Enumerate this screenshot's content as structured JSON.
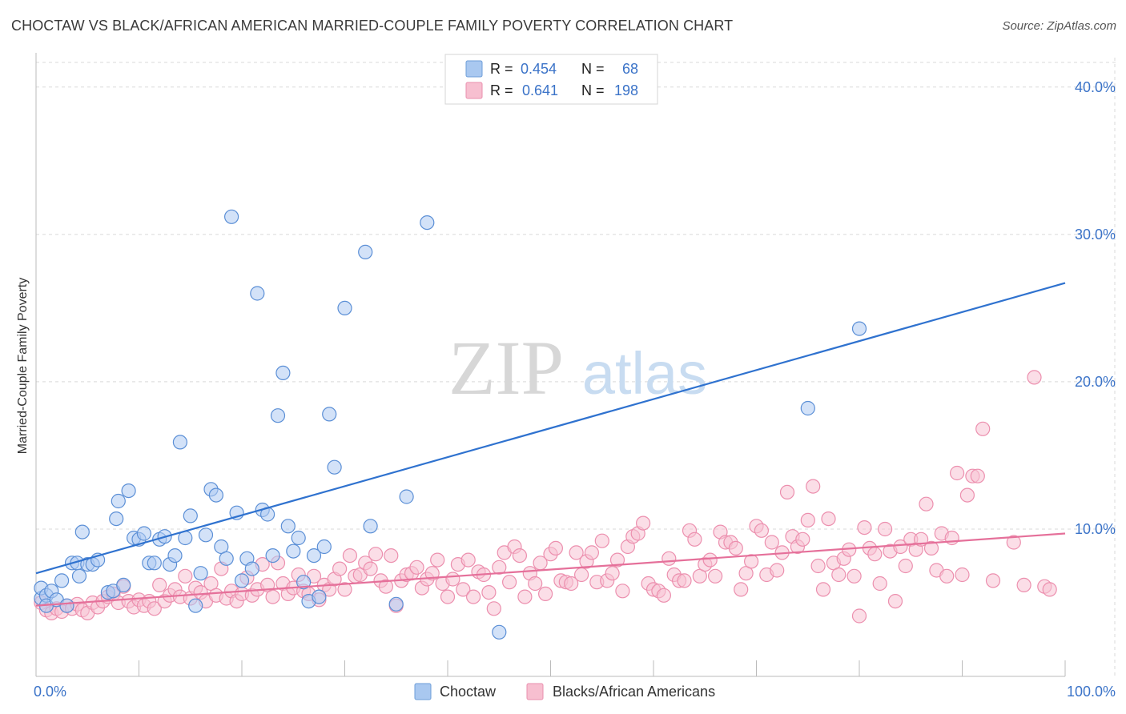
{
  "header": {
    "title": "CHOCTAW VS BLACK/AFRICAN AMERICAN MARRIED-COUPLE FAMILY POVERTY CORRELATION CHART",
    "source": "Source: ZipAtlas.com"
  },
  "watermark": {
    "zip": "ZIP",
    "atlas": "atlas"
  },
  "legend_box": {
    "rows": [
      {
        "r_label": "R =",
        "r_value": "0.454",
        "n_label": "N =",
        "n_value": "68",
        "color": "#a9c8f0",
        "stroke": "#6d9ed9"
      },
      {
        "r_label": "R =",
        "r_value": "0.641",
        "n_label": "N =",
        "n_value": "198",
        "color": "#f7bfd0",
        "stroke": "#ea8fae"
      }
    ]
  },
  "colors": {
    "blue_fill": "#aecbf2",
    "blue_stroke": "#5b8fd6",
    "blue_line": "#2f72cf",
    "pink_fill": "#f8c3d3",
    "pink_stroke": "#ec8fae",
    "pink_line": "#e5709a",
    "value_text": "#3b73c8",
    "grid": "#d9d9d9"
  },
  "chart_data": {
    "type": "scatter",
    "title": "CHOCTAW VS BLACK/AFRICAN AMERICAN MARRIED-COUPLE FAMILY POVERTY CORRELATION CHART",
    "xlabel": "",
    "ylabel": "Married-Couple Family Poverty",
    "xlim": [
      0,
      100
    ],
    "ylim": [
      0,
      42
    ],
    "x_tick_labels": [
      "0.0%",
      "100.0%"
    ],
    "y_ticks": [
      10,
      20,
      30,
      40
    ],
    "y_tick_labels": [
      "10.0%",
      "20.0%",
      "30.0%",
      "40.0%"
    ],
    "grid": true,
    "legend_position": "bottom",
    "series": [
      {
        "name": "Choctaw",
        "trend": {
          "x": [
            0,
            100
          ],
          "y": [
            7.0,
            26.7
          ]
        },
        "points": [
          [
            0.5,
            5.3
          ],
          [
            0.5,
            6.0
          ],
          [
            1,
            5.5
          ],
          [
            1,
            4.8
          ],
          [
            1.5,
            5.8
          ],
          [
            2,
            5.2
          ],
          [
            2.5,
            6.5
          ],
          [
            3,
            4.8
          ],
          [
            3.5,
            7.7
          ],
          [
            4,
            7.7
          ],
          [
            4.2,
            6.8
          ],
          [
            4.5,
            9.8
          ],
          [
            5,
            7.6
          ],
          [
            5.5,
            7.6
          ],
          [
            6,
            7.9
          ],
          [
            7,
            5.7
          ],
          [
            7.5,
            5.8
          ],
          [
            7.8,
            10.7
          ],
          [
            8,
            11.9
          ],
          [
            8.5,
            6.2
          ],
          [
            9,
            12.6
          ],
          [
            9.5,
            9.4
          ],
          [
            10,
            9.3
          ],
          [
            10.5,
            9.7
          ],
          [
            11,
            7.7
          ],
          [
            11.5,
            7.7
          ],
          [
            12,
            9.3
          ],
          [
            12.5,
            9.5
          ],
          [
            13,
            7.6
          ],
          [
            13.5,
            8.2
          ],
          [
            14,
            15.9
          ],
          [
            14.5,
            9.4
          ],
          [
            15,
            10.9
          ],
          [
            15.5,
            4.8
          ],
          [
            16,
            7.0
          ],
          [
            16.5,
            9.6
          ],
          [
            17,
            12.7
          ],
          [
            17.5,
            12.3
          ],
          [
            18,
            8.8
          ],
          [
            18.5,
            8.0
          ],
          [
            19,
            31.2
          ],
          [
            19.5,
            11.1
          ],
          [
            20,
            6.5
          ],
          [
            20.5,
            8.0
          ],
          [
            21,
            7.3
          ],
          [
            21.5,
            26.0
          ],
          [
            22,
            11.3
          ],
          [
            22.5,
            11.0
          ],
          [
            23,
            8.2
          ],
          [
            23.5,
            17.7
          ],
          [
            24,
            20.6
          ],
          [
            24.5,
            10.2
          ],
          [
            25,
            8.5
          ],
          [
            25.5,
            9.4
          ],
          [
            26,
            6.4
          ],
          [
            26.5,
            5.1
          ],
          [
            27,
            8.2
          ],
          [
            27.5,
            5.4
          ],
          [
            28,
            8.8
          ],
          [
            28.5,
            17.8
          ],
          [
            29,
            14.2
          ],
          [
            30,
            25.0
          ],
          [
            32,
            28.8
          ],
          [
            32.5,
            10.2
          ],
          [
            35,
            4.9
          ],
          [
            36,
            12.2
          ],
          [
            38,
            30.8
          ],
          [
            45,
            3.0
          ],
          [
            75,
            18.2
          ],
          [
            80,
            23.6
          ]
        ]
      },
      {
        "name": "Blacks/African Americans",
        "trend": {
          "x": [
            0,
            100
          ],
          "y": [
            4.8,
            9.7
          ]
        },
        "points": [
          [
            0.5,
            5.0
          ],
          [
            1,
            4.5
          ],
          [
            1.5,
            4.3
          ],
          [
            2,
            4.6
          ],
          [
            2.5,
            4.4
          ],
          [
            3,
            4.8
          ],
          [
            3.5,
            4.6
          ],
          [
            4,
            4.9
          ],
          [
            4.5,
            4.5
          ],
          [
            5,
            4.3
          ],
          [
            5.5,
            5.0
          ],
          [
            6,
            4.7
          ],
          [
            6.5,
            5.1
          ],
          [
            7,
            5.4
          ],
          [
            7.5,
            5.6
          ],
          [
            8,
            5.0
          ],
          [
            8.5,
            6.1
          ],
          [
            9,
            5.1
          ],
          [
            9.5,
            4.7
          ],
          [
            10,
            5.2
          ],
          [
            10.5,
            4.8
          ],
          [
            11,
            5.1
          ],
          [
            11.5,
            4.6
          ],
          [
            12,
            6.2
          ],
          [
            12.5,
            5.1
          ],
          [
            13,
            5.5
          ],
          [
            13.5,
            5.9
          ],
          [
            14,
            5.4
          ],
          [
            14.5,
            6.8
          ],
          [
            15,
            5.3
          ],
          [
            15.5,
            6.0
          ],
          [
            16,
            5.7
          ],
          [
            16.5,
            5.1
          ],
          [
            17,
            6.3
          ],
          [
            17.5,
            5.5
          ],
          [
            18,
            7.3
          ],
          [
            18.5,
            5.3
          ],
          [
            19,
            5.8
          ],
          [
            19.5,
            5.1
          ],
          [
            20,
            5.6
          ],
          [
            20.5,
            6.7
          ],
          [
            21,
            5.5
          ],
          [
            21.5,
            5.9
          ],
          [
            22,
            7.6
          ],
          [
            22.5,
            6.2
          ],
          [
            23,
            5.4
          ],
          [
            23.5,
            7.7
          ],
          [
            24,
            6.3
          ],
          [
            24.5,
            5.6
          ],
          [
            25,
            6.0
          ],
          [
            25.5,
            6.9
          ],
          [
            26,
            5.8
          ],
          [
            26.5,
            5.6
          ],
          [
            27,
            6.8
          ],
          [
            27.5,
            5.2
          ],
          [
            28,
            6.2
          ],
          [
            28.5,
            5.9
          ],
          [
            29,
            6.6
          ],
          [
            29.5,
            7.3
          ],
          [
            30,
            5.9
          ],
          [
            30.5,
            8.2
          ],
          [
            31,
            6.8
          ],
          [
            31.5,
            6.9
          ],
          [
            32,
            7.7
          ],
          [
            32.5,
            7.3
          ],
          [
            33,
            8.3
          ],
          [
            33.5,
            6.5
          ],
          [
            34,
            6.1
          ],
          [
            34.5,
            8.2
          ],
          [
            35,
            4.8
          ],
          [
            35.5,
            6.5
          ],
          [
            36,
            6.9
          ],
          [
            36.5,
            7.0
          ],
          [
            37,
            7.4
          ],
          [
            37.5,
            6.0
          ],
          [
            38,
            6.6
          ],
          [
            38.5,
            7.0
          ],
          [
            39,
            7.9
          ],
          [
            39.5,
            6.3
          ],
          [
            40,
            5.4
          ],
          [
            40.5,
            6.6
          ],
          [
            41,
            7.6
          ],
          [
            41.5,
            5.9
          ],
          [
            42,
            7.9
          ],
          [
            42.5,
            5.4
          ],
          [
            43,
            7.1
          ],
          [
            43.5,
            6.9
          ],
          [
            44,
            5.7
          ],
          [
            44.5,
            4.6
          ],
          [
            45,
            7.4
          ],
          [
            45.5,
            8.4
          ],
          [
            46,
            6.4
          ],
          [
            46.5,
            8.8
          ],
          [
            47,
            8.2
          ],
          [
            47.5,
            5.4
          ],
          [
            48,
            7.0
          ],
          [
            48.5,
            6.3
          ],
          [
            49,
            7.7
          ],
          [
            49.5,
            5.6
          ],
          [
            50,
            8.3
          ],
          [
            50.5,
            8.7
          ],
          [
            51,
            6.5
          ],
          [
            51.5,
            6.4
          ],
          [
            52,
            6.3
          ],
          [
            52.5,
            8.4
          ],
          [
            53,
            6.9
          ],
          [
            53.5,
            7.8
          ],
          [
            54,
            8.4
          ],
          [
            54.5,
            6.4
          ],
          [
            55,
            9.2
          ],
          [
            55.5,
            6.5
          ],
          [
            56,
            7.0
          ],
          [
            56.5,
            7.9
          ],
          [
            57,
            5.8
          ],
          [
            57.5,
            8.8
          ],
          [
            58,
            9.5
          ],
          [
            58.5,
            9.7
          ],
          [
            59,
            10.4
          ],
          [
            59.5,
            6.3
          ],
          [
            60,
            5.9
          ],
          [
            60.5,
            5.8
          ],
          [
            61,
            5.5
          ],
          [
            61.5,
            8.0
          ],
          [
            62,
            6.9
          ],
          [
            62.5,
            6.5
          ],
          [
            63,
            6.5
          ],
          [
            63.5,
            9.9
          ],
          [
            64,
            9.3
          ],
          [
            64.5,
            6.8
          ],
          [
            65,
            7.6
          ],
          [
            65.5,
            7.9
          ],
          [
            66,
            6.8
          ],
          [
            66.5,
            9.8
          ],
          [
            67,
            9.1
          ],
          [
            67.5,
            9.1
          ],
          [
            68,
            8.7
          ],
          [
            68.5,
            5.9
          ],
          [
            69,
            7.0
          ],
          [
            69.5,
            7.8
          ],
          [
            70,
            10.2
          ],
          [
            70.5,
            9.9
          ],
          [
            71,
            6.9
          ],
          [
            71.5,
            9.1
          ],
          [
            72,
            7.2
          ],
          [
            72.5,
            8.4
          ],
          [
            73,
            12.5
          ],
          [
            73.5,
            9.5
          ],
          [
            74,
            8.8
          ],
          [
            74.5,
            9.3
          ],
          [
            75,
            10.6
          ],
          [
            75.5,
            12.9
          ],
          [
            76,
            7.5
          ],
          [
            76.5,
            5.9
          ],
          [
            77,
            10.7
          ],
          [
            77.5,
            7.7
          ],
          [
            78,
            6.9
          ],
          [
            78.5,
            8.0
          ],
          [
            79,
            8.6
          ],
          [
            79.5,
            6.8
          ],
          [
            80,
            4.1
          ],
          [
            80.5,
            10.1
          ],
          [
            81,
            8.7
          ],
          [
            81.5,
            8.3
          ],
          [
            82,
            6.3
          ],
          [
            82.5,
            10.0
          ],
          [
            83,
            8.5
          ],
          [
            83.5,
            5.1
          ],
          [
            84,
            8.8
          ],
          [
            84.5,
            7.5
          ],
          [
            85,
            9.3
          ],
          [
            85.5,
            8.6
          ],
          [
            86,
            9.3
          ],
          [
            86.5,
            11.7
          ],
          [
            87,
            8.7
          ],
          [
            87.5,
            7.2
          ],
          [
            88,
            9.7
          ],
          [
            88.5,
            6.8
          ],
          [
            89,
            9.4
          ],
          [
            89.5,
            13.8
          ],
          [
            90,
            6.9
          ],
          [
            90.5,
            12.3
          ],
          [
            91,
            13.6
          ],
          [
            91.5,
            13.6
          ],
          [
            92,
            16.8
          ],
          [
            93,
            6.5
          ],
          [
            95,
            9.1
          ],
          [
            96,
            6.2
          ],
          [
            97,
            20.3
          ],
          [
            98,
            6.1
          ],
          [
            98.5,
            5.9
          ]
        ]
      }
    ]
  },
  "bottom_legend": {
    "items": [
      {
        "label": "Choctaw"
      },
      {
        "label": "Blacks/African Americans"
      }
    ]
  }
}
